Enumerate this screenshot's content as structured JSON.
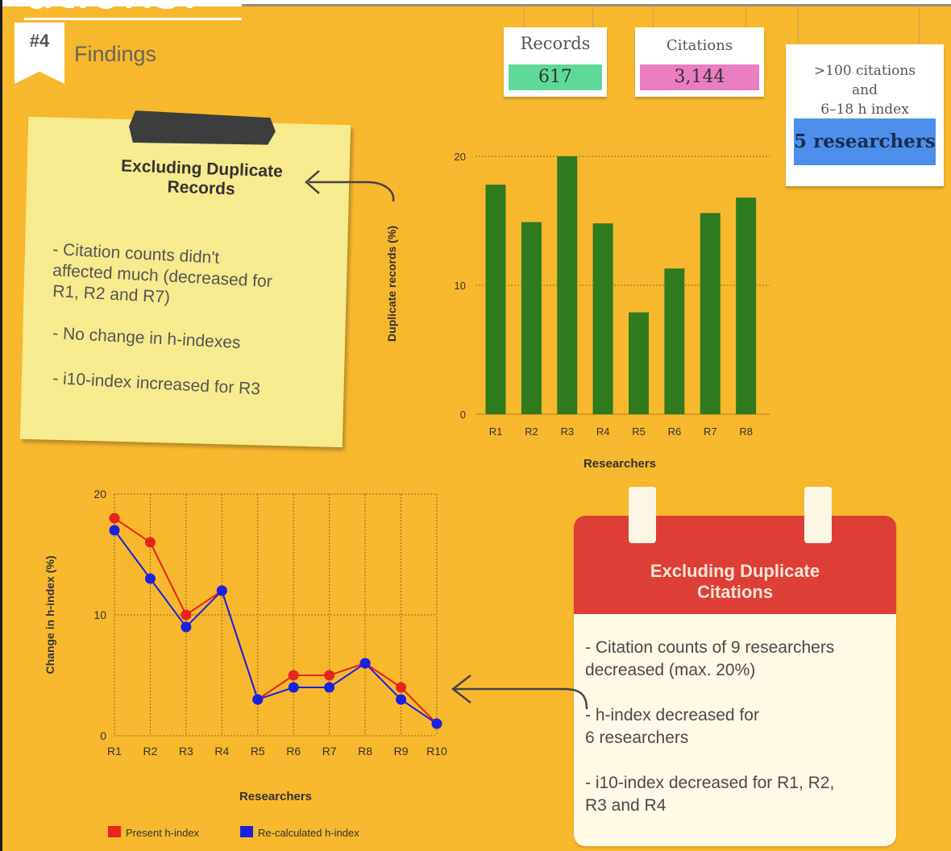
{
  "header": {
    "title_cropped": "ations:",
    "section_number": "#4",
    "section_title": "Findings"
  },
  "stats": {
    "records": {
      "label": "Records",
      "value": "617",
      "color": "#5fd99a"
    },
    "citations": {
      "label": "Citations",
      "value": "3,144",
      "color": "#ea7ec1"
    },
    "criteria": {
      "line1": ">100 citations",
      "line2": "and",
      "line3": "6–18 h index",
      "value": "5 researchers",
      "color": "#4d8fea"
    }
  },
  "note_records": {
    "title_line1": "Excluding Duplicate",
    "title_line2": "Records",
    "lines": [
      "- Citation counts didn't",
      "affected much (decreased for",
      "R1, R2 and R7)",
      "- No change in h-indexes",
      "- i10-index increased for R3"
    ]
  },
  "note_citations": {
    "title_line1": "Excluding Duplicate",
    "title_line2": "Citations",
    "lines": [
      "- Citation counts of 9 researchers",
      "decreased (max. 20%)",
      "- h-index decreased for",
      "6 researchers",
      "- i10-index decreased for R1, R2,",
      "R3 and R4"
    ]
  },
  "chart_data": [
    {
      "type": "bar",
      "xlabel": "Researchers",
      "ylabel": "Duplicate records (%)",
      "categories": [
        "R1",
        "R2",
        "R3",
        "R4",
        "R5",
        "R6",
        "R7",
        "R8"
      ],
      "values": [
        17.8,
        14.9,
        20,
        14.8,
        7.9,
        11.3,
        15.6,
        16.8
      ],
      "yticks": [
        0,
        10,
        20
      ],
      "ylim": [
        0,
        20
      ],
      "bar_color": "#2f7a1f",
      "grid": true
    },
    {
      "type": "line",
      "xlabel": "Researchers",
      "ylabel": "Change in h-index (%)",
      "categories": [
        "R1",
        "R2",
        "R3",
        "R4",
        "R5",
        "R6",
        "R7",
        "R8",
        "R9",
        "R10"
      ],
      "yticks": [
        0,
        10,
        20
      ],
      "ylim": [
        0,
        20
      ],
      "grid": true,
      "legend_position": "bottom",
      "series": [
        {
          "name": "Present h-index",
          "color": "#e8231b",
          "values": [
            18,
            16,
            10,
            12,
            3,
            5,
            5,
            6,
            4,
            1
          ]
        },
        {
          "name": "Re-calculated h-index",
          "color": "#1a22e0",
          "values": [
            17,
            13,
            9,
            12,
            3,
            4,
            4,
            6,
            3,
            1
          ]
        }
      ]
    }
  ]
}
